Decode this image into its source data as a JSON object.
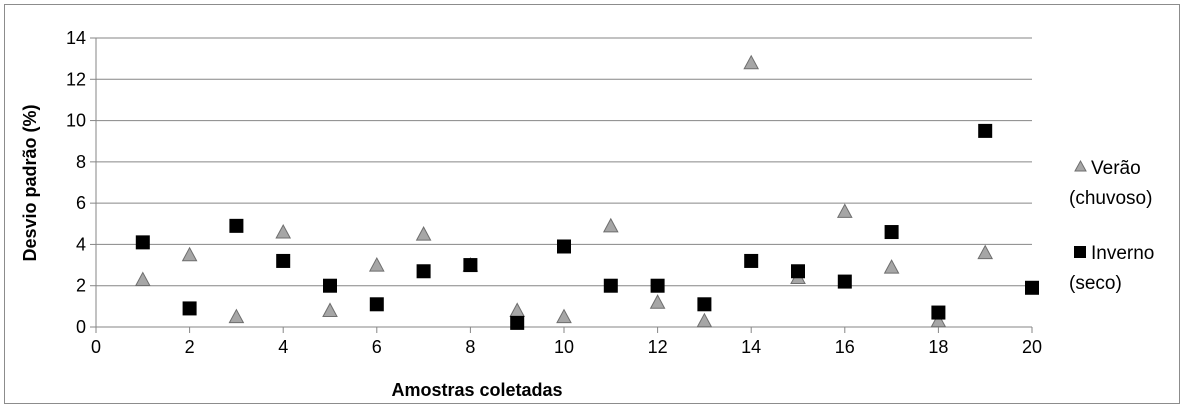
{
  "chart_data": {
    "type": "scatter",
    "xlabel": "Amostras coletadas",
    "ylabel": "Desvio padrão (%)",
    "xlim": [
      0,
      20
    ],
    "ylim": [
      0,
      14
    ],
    "x_ticks": [
      0,
      2,
      4,
      6,
      8,
      10,
      12,
      14,
      16,
      18,
      20
    ],
    "y_ticks": [
      0,
      2,
      4,
      6,
      8,
      10,
      12,
      14
    ],
    "grid": "horizontal",
    "legend_position": "right",
    "series": [
      {
        "name_line1": "Verão",
        "name_line2": "(chuvoso)",
        "marker": "triangle",
        "color": "#a6a6a6",
        "x": [
          1,
          2,
          3,
          4,
          5,
          6,
          7,
          8,
          9,
          10,
          11,
          12,
          13,
          14,
          15,
          16,
          17,
          18,
          19
        ],
        "y": [
          2.3,
          3.5,
          0.5,
          4.6,
          0.8,
          3.0,
          4.5,
          3.0,
          0.8,
          0.5,
          4.9,
          1.2,
          0.3,
          12.8,
          2.4,
          5.6,
          2.9,
          0.3,
          3.6
        ]
      },
      {
        "name_line1": "Inverno",
        "name_line2": "(seco)",
        "marker": "square",
        "color": "#000000",
        "x": [
          1,
          2,
          3,
          4,
          5,
          6,
          7,
          8,
          9,
          10,
          11,
          12,
          13,
          14,
          15,
          16,
          17,
          18,
          19,
          20
        ],
        "y": [
          4.1,
          0.9,
          4.9,
          3.2,
          2.0,
          1.1,
          2.7,
          3.0,
          0.2,
          3.9,
          2.0,
          2.0,
          1.1,
          3.2,
          2.7,
          2.2,
          4.6,
          0.7,
          9.5,
          1.9
        ]
      }
    ]
  }
}
